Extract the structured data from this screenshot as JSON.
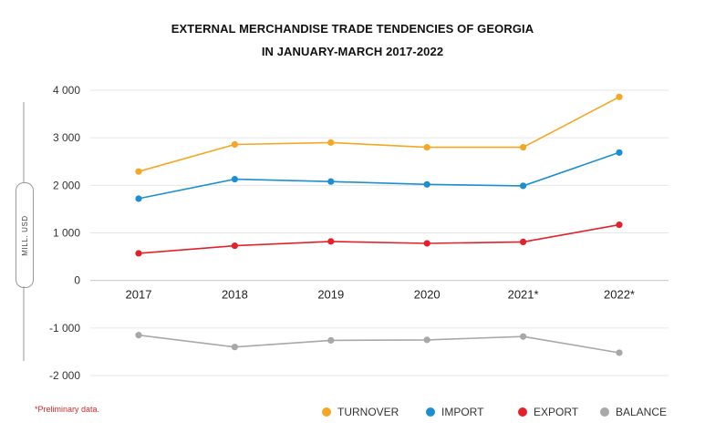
{
  "title_line1": "EXTERNAL MERCHANDISE TRADE TENDENCIES OF GEORGIA",
  "title_line2": "IN JANUARY-MARCH 2017-2022",
  "ylabel": "MILL. USD",
  "footnote": "*Preliminary data.",
  "chart_data": {
    "type": "line",
    "title": "EXTERNAL MERCHANDISE TRADE TENDENCIES OF GEORGIA IN JANUARY-MARCH 2017-2022",
    "ylabel": "MILL. USD",
    "xlabel": "",
    "categories": [
      "2017",
      "2018",
      "2019",
      "2020",
      "2021*",
      "2022*"
    ],
    "ylim": [
      -2000,
      4000
    ],
    "yticks": [
      4000,
      3000,
      2000,
      1000,
      0,
      -1000,
      -2000
    ],
    "ytick_labels": [
      "4 000",
      "3 000",
      "2 000",
      "1 000",
      "0",
      "-1 000",
      "-2 000"
    ],
    "grid": true,
    "legend_position": "bottom-right",
    "series": [
      {
        "name": "TURNOVER",
        "color": "#f5a623",
        "values": [
          2290,
          2860,
          2900,
          2800,
          2800,
          3860
        ]
      },
      {
        "name": "IMPORT",
        "color": "#1b8fd1",
        "values": [
          1720,
          2130,
          2080,
          2020,
          1990,
          2690
        ]
      },
      {
        "name": "EXPORT",
        "color": "#e3212b",
        "values": [
          570,
          730,
          820,
          780,
          810,
          1170
        ]
      },
      {
        "name": "BALANCE",
        "color": "#a8a8a8",
        "values": [
          -1150,
          -1400,
          -1260,
          -1250,
          -1180,
          -1520
        ]
      }
    ]
  }
}
